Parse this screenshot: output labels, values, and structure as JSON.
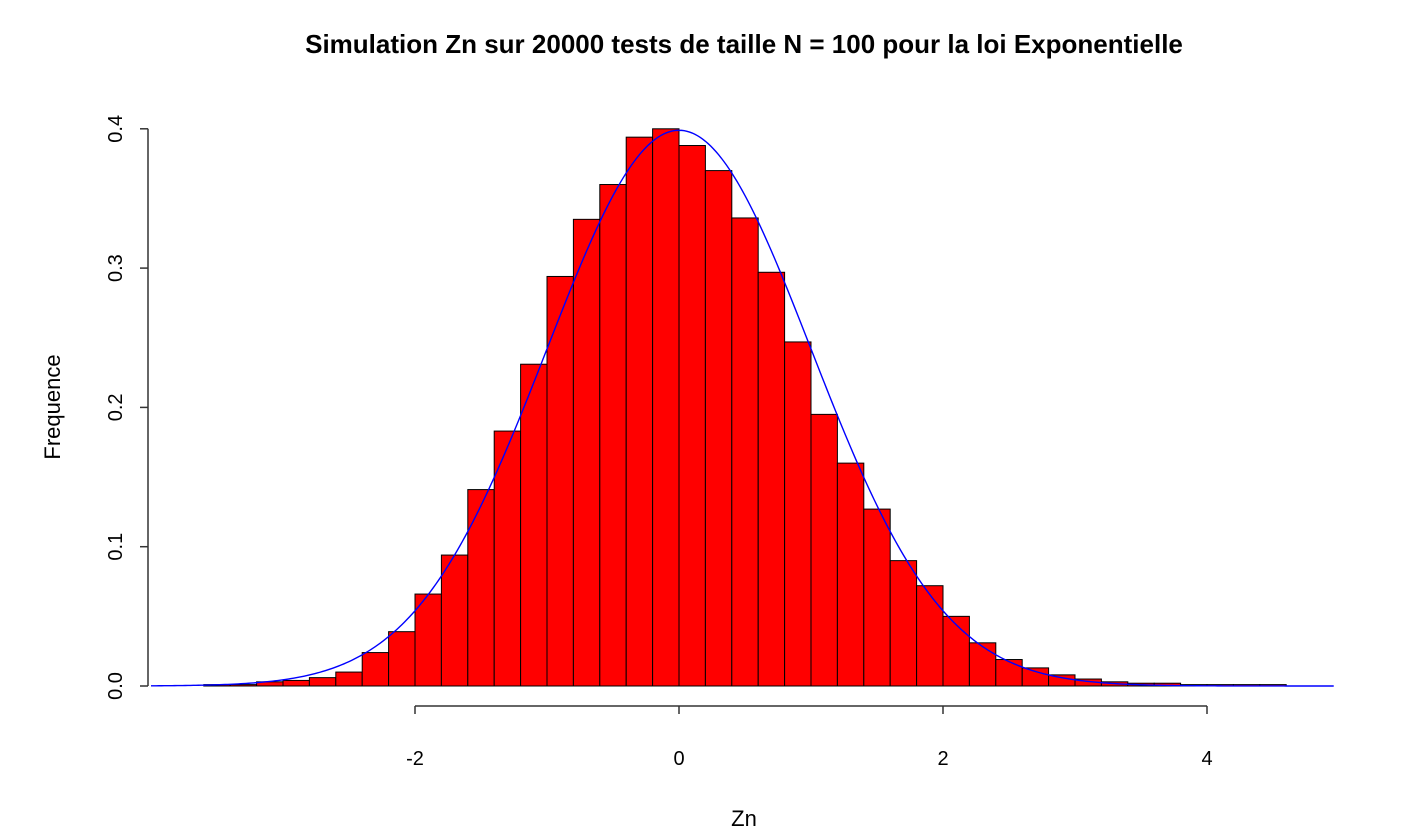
{
  "chart_data": {
    "type": "bar",
    "title": "Simulation Zn sur 20000 tests de taille N = 100 pour la loi Exponentielle",
    "xlabel": "Zn",
    "ylabel": "Frequence",
    "xlim": [
      -4,
      5
    ],
    "ylim": [
      0,
      0.4
    ],
    "x_ticks": [
      -2,
      0,
      2,
      4
    ],
    "x_tick_labels": [
      "-2",
      "0",
      "2",
      "4"
    ],
    "y_ticks": [
      0,
      0.1,
      0.2,
      0.3,
      0.4
    ],
    "y_tick_labels": [
      "0.0",
      "0.1",
      "0.2",
      "0.3",
      "0.4"
    ],
    "grid": false,
    "bar_color": "#ff0000",
    "bar_border": "#000000",
    "curve_color": "#0000ff",
    "bins": {
      "start": -3.6,
      "width": 0.2,
      "values": [
        0.001,
        0.001,
        0.003,
        0.004,
        0.006,
        0.01,
        0.024,
        0.039,
        0.066,
        0.094,
        0.141,
        0.183,
        0.231,
        0.294,
        0.335,
        0.36,
        0.394,
        0.4,
        0.388,
        0.37,
        0.336,
        0.297,
        0.247,
        0.195,
        0.16,
        0.127,
        0.09,
        0.072,
        0.05,
        0.031,
        0.019,
        0.013,
        0.008,
        0.005,
        0.003,
        0.002,
        0.002,
        0.001,
        0.001,
        0.001,
        0.001
      ]
    },
    "series": [
      {
        "name": "",
        "type": "bar",
        "x_start": -3.6,
        "bin_width": 0.2
      },
      {
        "name": "",
        "type": "line",
        "function": "dnorm",
        "mean": 0,
        "sd": 1
      }
    ]
  }
}
